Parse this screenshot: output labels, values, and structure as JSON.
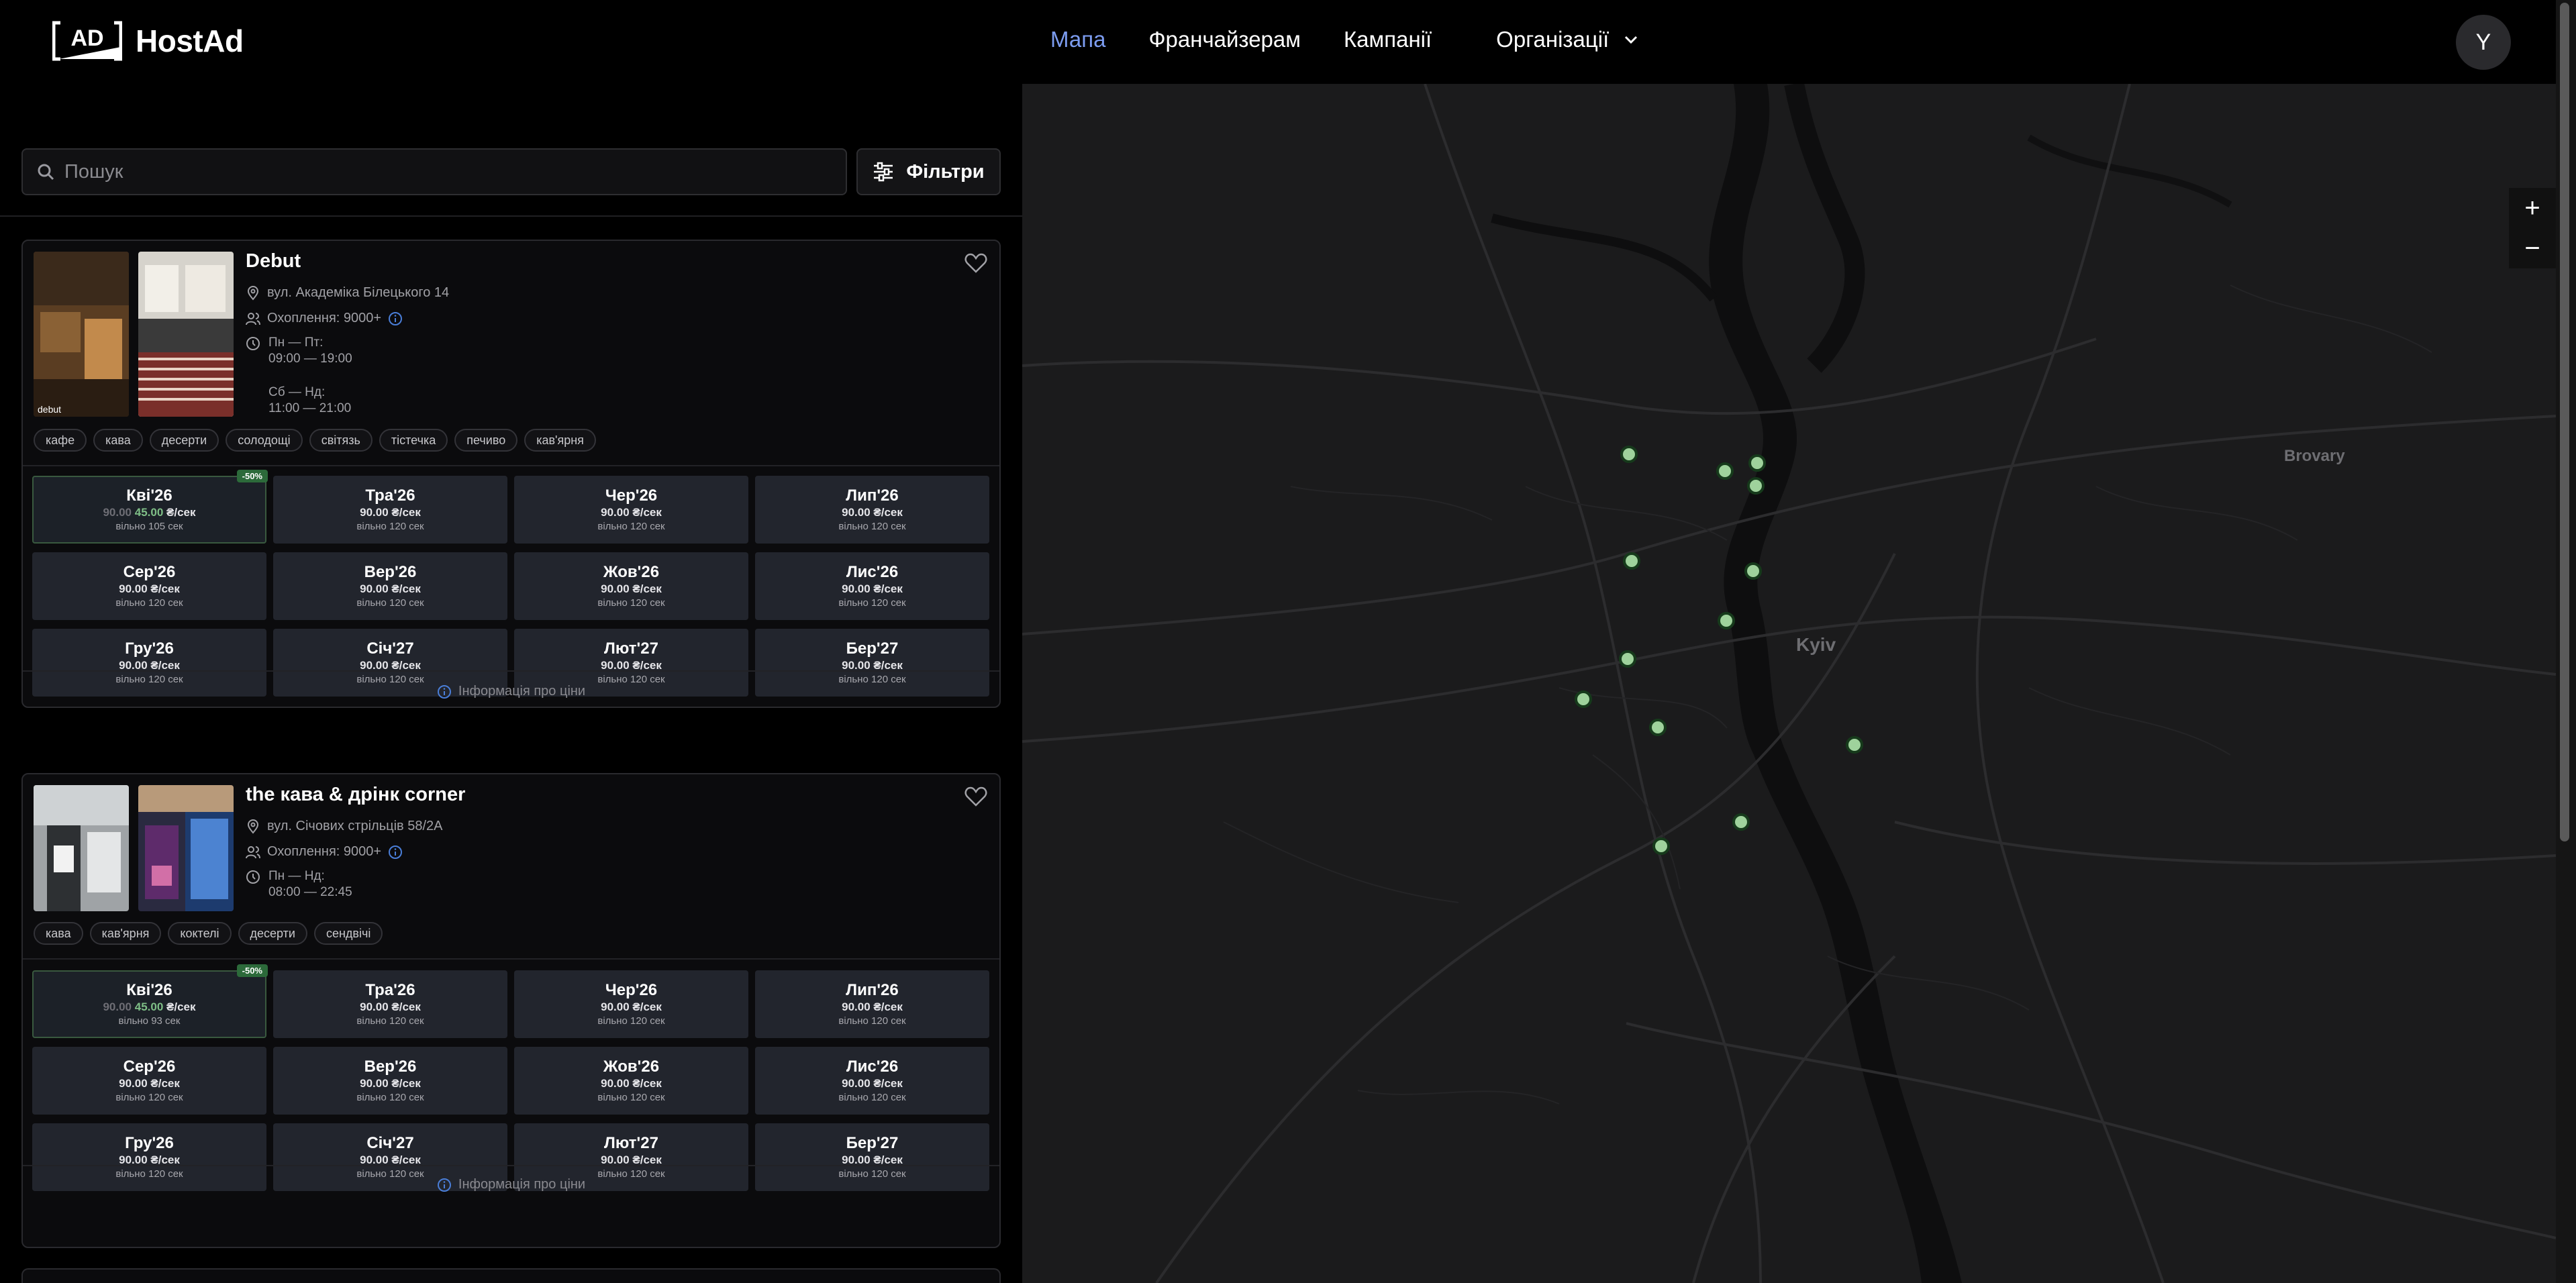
{
  "brand": {
    "name": "HostAd",
    "mark": "AD"
  },
  "nav": {
    "items": [
      "Мапа",
      "Франчайзерам",
      "Кампанії"
    ],
    "dropdown": "Організації"
  },
  "user": {
    "initial": "Y"
  },
  "search": {
    "placeholder": "Пошук",
    "value": ""
  },
  "filters_label": "Фільтри",
  "venues": [
    {
      "name": "Debut",
      "address": "вул. Академіка Білецького 14",
      "coverage": "Охоплення: 9000+",
      "hours": [
        {
          "days": "Пн — Пт:",
          "time": "09:00 — 19:00"
        },
        {
          "days": "Сб — Нд:",
          "time": "11:00 — 21:00"
        }
      ],
      "tags": [
        "кафе",
        "кава",
        "десерти",
        "солодощі",
        "світязь",
        "тістечка",
        "печиво",
        "кав'ярня"
      ],
      "slots": [
        {
          "month": "Кві'26",
          "old": "90.00",
          "price": "45.00",
          "unit": "₴/сек",
          "free": "вільно 105 сек",
          "badge": "-50%"
        },
        {
          "month": "Тра'26",
          "price": "90.00 ₴/сек",
          "free": "вільно 120 сек"
        },
        {
          "month": "Чер'26",
          "price": "90.00 ₴/сек",
          "free": "вільно 120 сек"
        },
        {
          "month": "Лип'26",
          "price": "90.00 ₴/сек",
          "free": "вільно 120 сек"
        },
        {
          "month": "Сер'26",
          "price": "90.00 ₴/сек",
          "free": "вільно 120 сек"
        },
        {
          "month": "Вер'26",
          "price": "90.00 ₴/сек",
          "free": "вільно 120 сек"
        },
        {
          "month": "Жов'26",
          "price": "90.00 ₴/сек",
          "free": "вільно 120 сек"
        },
        {
          "month": "Лис'26",
          "price": "90.00 ₴/сек",
          "free": "вільно 120 сек"
        },
        {
          "month": "Гру'26",
          "price": "90.00 ₴/сек",
          "free": "вільно 120 сек"
        },
        {
          "month": "Січ'27",
          "price": "90.00 ₴/сек",
          "free": "вільно 120 сек"
        },
        {
          "month": "Лют'27",
          "price": "90.00 ₴/сек",
          "free": "вільно 120 сек"
        },
        {
          "month": "Бер'27",
          "price": "90.00 ₴/сек",
          "free": "вільно 120 сек"
        }
      ],
      "price_info": "Інформація про ціни"
    },
    {
      "name": "the кава & дрінк corner",
      "address": "вул. Січових стрільців 58/2А",
      "coverage": "Охоплення: 9000+",
      "hours": [
        {
          "days": "Пн — Нд:",
          "time": "08:00 — 22:45"
        }
      ],
      "tags": [
        "кава",
        "кав'ярня",
        "коктелі",
        "десерти",
        "сендвічі"
      ],
      "slots": [
        {
          "month": "Кві'26",
          "old": "90.00",
          "price": "45.00",
          "unit": "₴/сек",
          "free": "вільно 93 сек",
          "badge": "-50%"
        },
        {
          "month": "Тра'26",
          "price": "90.00 ₴/сек",
          "free": "вільно 120 сек"
        },
        {
          "month": "Чер'26",
          "price": "90.00 ₴/сек",
          "free": "вільно 120 сек"
        },
        {
          "month": "Лип'26",
          "price": "90.00 ₴/сек",
          "free": "вільно 120 сек"
        },
        {
          "month": "Сер'26",
          "price": "90.00 ₴/сек",
          "free": "вільно 120 сек"
        },
        {
          "month": "Вер'26",
          "price": "90.00 ₴/сек",
          "free": "вільно 120 сек"
        },
        {
          "month": "Жов'26",
          "price": "90.00 ₴/сек",
          "free": "вільно 120 сек"
        },
        {
          "month": "Лис'26",
          "price": "90.00 ₴/сек",
          "free": "вільно 120 сек"
        },
        {
          "month": "Гру'26",
          "price": "90.00 ₴/сек",
          "free": "вільно 120 сек"
        },
        {
          "month": "Січ'27",
          "price": "90.00 ₴/сек",
          "free": "вільно 120 сек"
        },
        {
          "month": "Лют'27",
          "price": "90.00 ₴/сек",
          "free": "вільно 120 сек"
        },
        {
          "month": "Бер'27",
          "price": "90.00 ₴/сек",
          "free": "вільно 120 сек"
        }
      ],
      "price_info": "Інформація про ціни"
    }
  ],
  "map": {
    "labels": [
      "Kyiv",
      "Brovary"
    ],
    "zoom_in": "+",
    "zoom_out": "−",
    "marker_color": "#9fd29c"
  }
}
